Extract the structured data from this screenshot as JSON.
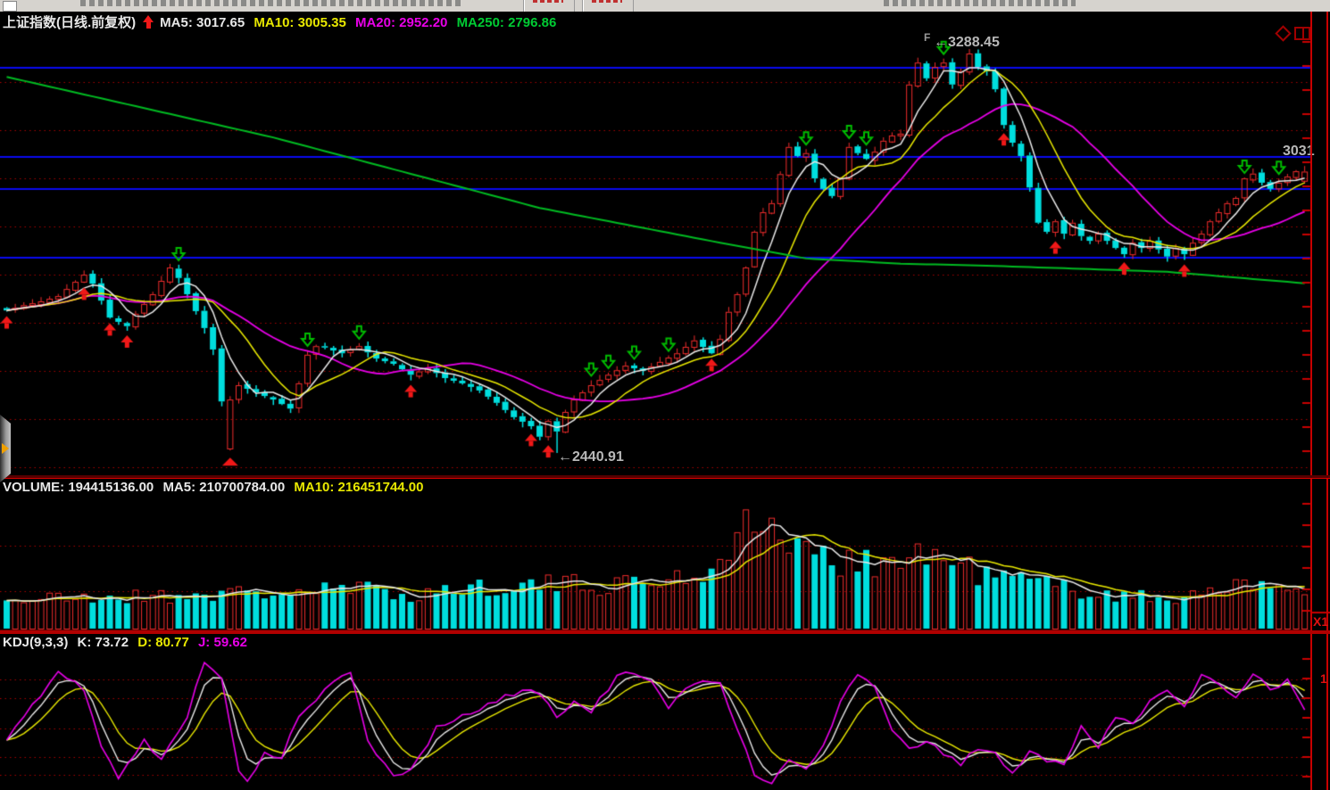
{
  "main_pane": {
    "title": {
      "symbol": "上证指数(日线.前复权)",
      "ma5": "MA5: 3017.65",
      "ma10": "MA10: 3005.35",
      "ma20": "MA20: 2952.20",
      "ma250": "MA250: 2796.86"
    },
    "annotations": {
      "peak": "←3288.45",
      "trough": "←2440.91",
      "last_price": "3031",
      "peak_glyph": "F"
    }
  },
  "volume_pane": {
    "title": {
      "volume": "VOLUME: 194415136.00",
      "ma5": "MA5: 210700784.00",
      "ma10": "MA10: 216451744.00"
    },
    "scale_label": "X1"
  },
  "kdj_pane": {
    "title": {
      "kdj": "KDJ(9,3,3)",
      "k": "K: 73.72",
      "d": "D: 80.77",
      "j": "J: 59.62"
    },
    "axis_label": "1"
  },
  "chart_data": [
    {
      "type": "candlestick",
      "title": "上证指数 daily (前复权)",
      "count": 152,
      "y_axis": {
        "price_at_plot_top": 3324,
        "price_at_plot_bottom": 2396
      },
      "latest": {
        "ma5": 3017.65,
        "ma10": 3005.35,
        "ma20": 2952.2,
        "ma250": 2796.86,
        "close": 3031.3,
        "peak_high": 3288.45,
        "trough_low": 2440.91
      },
      "close_anchors": [
        [
          0,
          2740
        ],
        [
          2,
          2751
        ],
        [
          4,
          2759
        ],
        [
          6,
          2770
        ],
        [
          9,
          2815
        ],
        [
          10,
          2796
        ],
        [
          12,
          2725
        ],
        [
          14,
          2707
        ],
        [
          15,
          2733
        ],
        [
          17,
          2774
        ],
        [
          19,
          2830
        ],
        [
          20,
          2808
        ],
        [
          21,
          2774
        ],
        [
          23,
          2703
        ],
        [
          24,
          2658
        ],
        [
          25,
          2549
        ],
        [
          27,
          2583
        ],
        [
          29,
          2568
        ],
        [
          31,
          2553
        ],
        [
          33,
          2534
        ],
        [
          34,
          2587
        ],
        [
          35,
          2647
        ],
        [
          36,
          2665
        ],
        [
          37,
          2662
        ],
        [
          39,
          2650
        ],
        [
          41,
          2665
        ],
        [
          43,
          2639
        ],
        [
          45,
          2628
        ],
        [
          47,
          2605
        ],
        [
          49,
          2619
        ],
        [
          51,
          2598
        ],
        [
          53,
          2587
        ],
        [
          55,
          2572
        ],
        [
          57,
          2546
        ],
        [
          59,
          2516
        ],
        [
          61,
          2497
        ],
        [
          62,
          2475
        ],
        [
          63,
          2508
        ],
        [
          64,
          2486
        ],
        [
          65,
          2527
        ],
        [
          66,
          2553
        ],
        [
          68,
          2583
        ],
        [
          70,
          2605
        ],
        [
          72,
          2624
        ],
        [
          74,
          2613
        ],
        [
          76,
          2632
        ],
        [
          78,
          2650
        ],
        [
          80,
          2677
        ],
        [
          82,
          2650
        ],
        [
          83,
          2680
        ],
        [
          84,
          2737
        ],
        [
          85,
          2774
        ],
        [
          86,
          2830
        ],
        [
          87,
          2905
        ],
        [
          88,
          2946
        ],
        [
          89,
          2965
        ],
        [
          90,
          3026
        ],
        [
          91,
          3083
        ],
        [
          92,
          3064
        ],
        [
          93,
          3070
        ],
        [
          94,
          3017
        ],
        [
          95,
          2995
        ],
        [
          96,
          2980
        ],
        [
          97,
          3017
        ],
        [
          98,
          3083
        ],
        [
          99,
          3070
        ],
        [
          100,
          3058
        ],
        [
          101,
          3073
        ],
        [
          102,
          3096
        ],
        [
          103,
          3107
        ],
        [
          104,
          3111
        ],
        [
          105,
          3214
        ],
        [
          106,
          3260
        ],
        [
          107,
          3227
        ],
        [
          108,
          3251
        ],
        [
          109,
          3260
        ],
        [
          110,
          3214
        ],
        [
          111,
          3242
        ],
        [
          112,
          3279
        ],
        [
          113,
          3251
        ],
        [
          114,
          3242
        ],
        [
          115,
          3204
        ],
        [
          116,
          3129
        ],
        [
          117,
          3092
        ],
        [
          118,
          3064
        ],
        [
          119,
          2998
        ],
        [
          120,
          2924
        ],
        [
          121,
          2905
        ],
        [
          122,
          2927
        ],
        [
          123,
          2901
        ],
        [
          124,
          2924
        ],
        [
          125,
          2896
        ],
        [
          126,
          2886
        ],
        [
          127,
          2901
        ],
        [
          128,
          2886
        ],
        [
          129,
          2871
        ],
        [
          130,
          2858
        ],
        [
          131,
          2882
        ],
        [
          132,
          2871
        ],
        [
          133,
          2886
        ],
        [
          134,
          2868
        ],
        [
          135,
          2853
        ],
        [
          136,
          2871
        ],
        [
          137,
          2858
        ],
        [
          138,
          2882
        ],
        [
          139,
          2901
        ],
        [
          140,
          2927
        ],
        [
          141,
          2946
        ],
        [
          142,
          2965
        ],
        [
          143,
          2976
        ],
        [
          144,
          3017
        ],
        [
          145,
          3027
        ],
        [
          146,
          3008
        ],
        [
          147,
          2995
        ],
        [
          148,
          3008
        ],
        [
          149,
          3021
        ],
        [
          150,
          3032
        ],
        [
          151,
          3031
        ]
      ],
      "overrides": [
        {
          "i": 26,
          "o": 2450.3,
          "c": 2553.0,
          "h": 2560.0,
          "l": 2446.0
        },
        {
          "i": 64,
          "l": 2440.91
        },
        {
          "i": 112,
          "h": 3288.45
        },
        {
          "i": 151,
          "o": 3012.0,
          "c": 3031.3,
          "h": 3043.0,
          "l": 3006.0
        }
      ],
      "ma250_anchors": [
        [
          0,
          3230
        ],
        [
          31,
          3103
        ],
        [
          62,
          2955
        ],
        [
          83,
          2882
        ],
        [
          93,
          2849
        ],
        [
          104,
          2838
        ],
        [
          114,
          2834
        ],
        [
          135,
          2821
        ],
        [
          151,
          2796.9
        ]
      ],
      "grid": {
        "blue_line_prices": [
          3249.2,
          3062.1,
          2994.7,
          2850.6
        ],
        "dotted_line_prices": [
          3219.2,
          3118.2,
          3017.2,
          2916.1,
          2815.1,
          2714.0,
          2613.0,
          2511.9,
          2410.9
        ]
      },
      "buy_signal_indices": [
        0,
        9,
        12,
        14,
        47,
        61,
        63,
        82,
        116,
        122,
        130,
        137
      ],
      "sell_signal_indices": [
        20,
        35,
        41,
        68,
        70,
        73,
        77,
        93,
        98,
        100,
        109,
        144,
        148
      ],
      "bottom_triangle_index": 26,
      "series_colors": {
        "up": "#ee2c2c",
        "down": "#00dede",
        "ma5": "#e8e8e8",
        "ma10": "#e8e800",
        "ma20": "#e800e8",
        "ma250": "#00bb22",
        "blue_grid": "#0a0af0",
        "dotted_grid": "#aa0000"
      }
    },
    {
      "type": "bar",
      "name": "VOLUME",
      "latest": {
        "volume": 194415136.0,
        "ma5": 210700784.0,
        "ma10": 216451744.0
      },
      "envelope_anchors": [
        [
          0,
          0.28
        ],
        [
          12,
          0.3
        ],
        [
          22,
          0.33
        ],
        [
          33,
          0.35
        ],
        [
          41,
          0.38
        ],
        [
          47,
          0.33
        ],
        [
          57,
          0.42
        ],
        [
          64,
          0.42
        ],
        [
          70,
          0.43
        ],
        [
          75,
          0.46
        ],
        [
          79,
          0.5
        ],
        [
          82,
          0.56
        ],
        [
          84,
          0.85
        ],
        [
          87,
          1.0
        ],
        [
          90,
          0.93
        ],
        [
          93,
          0.72
        ],
        [
          96,
          0.62
        ],
        [
          99,
          0.73
        ],
        [
          102,
          0.62
        ],
        [
          105,
          0.68
        ],
        [
          108,
          0.73
        ],
        [
          110,
          0.62
        ],
        [
          113,
          0.55
        ],
        [
          117,
          0.48
        ],
        [
          120,
          0.45
        ],
        [
          124,
          0.38
        ],
        [
          128,
          0.34
        ],
        [
          132,
          0.3
        ],
        [
          135,
          0.28
        ],
        [
          139,
          0.38
        ],
        [
          141,
          0.44
        ],
        [
          145,
          0.36
        ],
        [
          148,
          0.42
        ],
        [
          151,
          0.4
        ]
      ],
      "grid_levels_rel": [
        0.64,
        0.29
      ]
    },
    {
      "type": "line",
      "name": "KDJ",
      "params": "(9,3,3)",
      "latest": {
        "k": 73.72,
        "d": 80.77,
        "j": 59.62
      },
      "ylim": [
        0,
        100
      ],
      "grid_values": [
        83,
        68,
        45,
        23,
        9
      ],
      "j_anchors": [
        [
          0,
          35
        ],
        [
          2,
          55
        ],
        [
          6,
          88
        ],
        [
          9,
          75
        ],
        [
          11,
          30
        ],
        [
          13,
          8
        ],
        [
          16,
          35
        ],
        [
          18,
          20
        ],
        [
          21,
          55
        ],
        [
          23,
          97
        ],
        [
          25,
          85
        ],
        [
          27,
          10
        ],
        [
          28,
          5
        ],
        [
          30,
          25
        ],
        [
          32,
          22
        ],
        [
          34,
          55
        ],
        [
          38,
          80
        ],
        [
          40,
          88
        ],
        [
          42,
          35
        ],
        [
          45,
          8
        ],
        [
          47,
          12
        ],
        [
          50,
          45
        ],
        [
          55,
          60
        ],
        [
          60,
          75
        ],
        [
          62,
          72
        ],
        [
          64,
          55
        ],
        [
          66,
          65
        ],
        [
          68,
          58
        ],
        [
          71,
          85
        ],
        [
          73,
          88
        ],
        [
          75,
          80
        ],
        [
          77,
          60
        ],
        [
          79,
          75
        ],
        [
          81,
          83
        ],
        [
          83,
          80
        ],
        [
          85,
          45
        ],
        [
          87,
          10
        ],
        [
          89,
          3
        ],
        [
          91,
          20
        ],
        [
          93,
          15
        ],
        [
          95,
          30
        ],
        [
          97,
          65
        ],
        [
          99,
          88
        ],
        [
          101,
          75
        ],
        [
          103,
          45
        ],
        [
          105,
          30
        ],
        [
          107,
          35
        ],
        [
          109,
          25
        ],
        [
          111,
          18
        ],
        [
          113,
          30
        ],
        [
          115,
          25
        ],
        [
          117,
          10
        ],
        [
          119,
          28
        ],
        [
          121,
          20
        ],
        [
          123,
          18
        ],
        [
          125,
          45
        ],
        [
          127,
          30
        ],
        [
          129,
          55
        ],
        [
          131,
          48
        ],
        [
          133,
          68
        ],
        [
          135,
          75
        ],
        [
          137,
          60
        ],
        [
          139,
          85
        ],
        [
          141,
          80
        ],
        [
          143,
          70
        ],
        [
          145,
          88
        ],
        [
          147,
          75
        ],
        [
          149,
          82
        ],
        [
          151,
          60
        ]
      ],
      "line_colors": {
        "k": "#e8e8e8",
        "d": "#e8e800",
        "j": "#e800e8"
      }
    }
  ]
}
